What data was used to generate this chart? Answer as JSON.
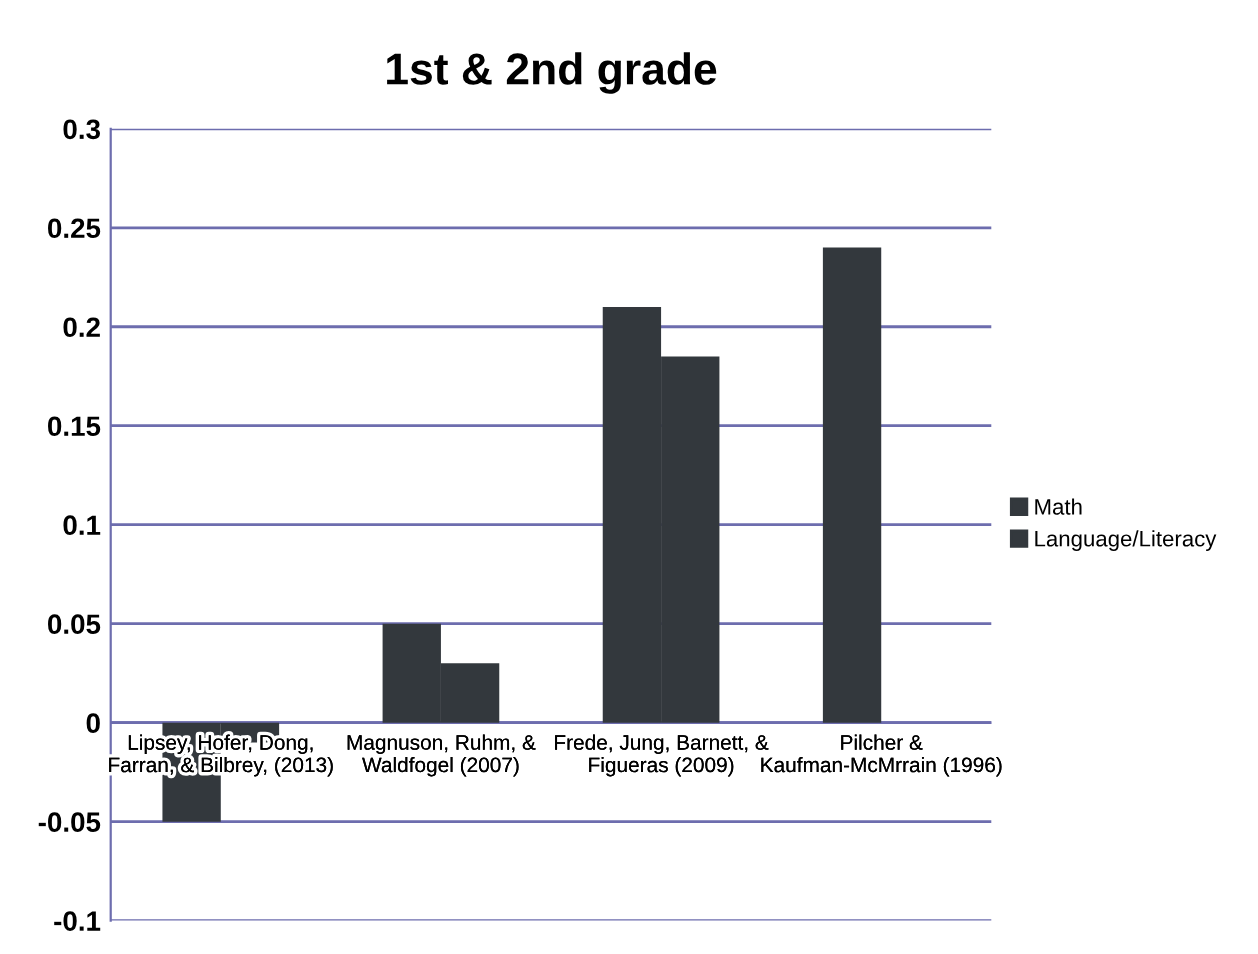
{
  "chart_data": {
    "type": "bar",
    "title": "1st & 2nd grade",
    "categories": [
      "Lipsey, Hofer, Dong, Farran, & Bilbrey, (2013)",
      "Magnuson, Ruhm, & Waldfogel (2007)",
      "Frede, Jung, Barnett, & Figueras (2009)",
      "Pilcher & Kaufman-McMrrain (1996)"
    ],
    "series": [
      {
        "name": "Math",
        "color": "#33383d",
        "values": [
          -0.05,
          0.05,
          0.21,
          0.24
        ]
      },
      {
        "name": "Language/Literacy",
        "color": "#33383d",
        "values": [
          -0.01,
          0.03,
          0.185,
          null
        ]
      }
    ],
    "ylim": [
      -0.1,
      0.3
    ],
    "yticks": [
      -0.1,
      -0.05,
      0,
      0.05,
      0.1,
      0.15,
      0.2,
      0.25,
      0.3
    ],
    "grid": "y",
    "legend": "right"
  }
}
